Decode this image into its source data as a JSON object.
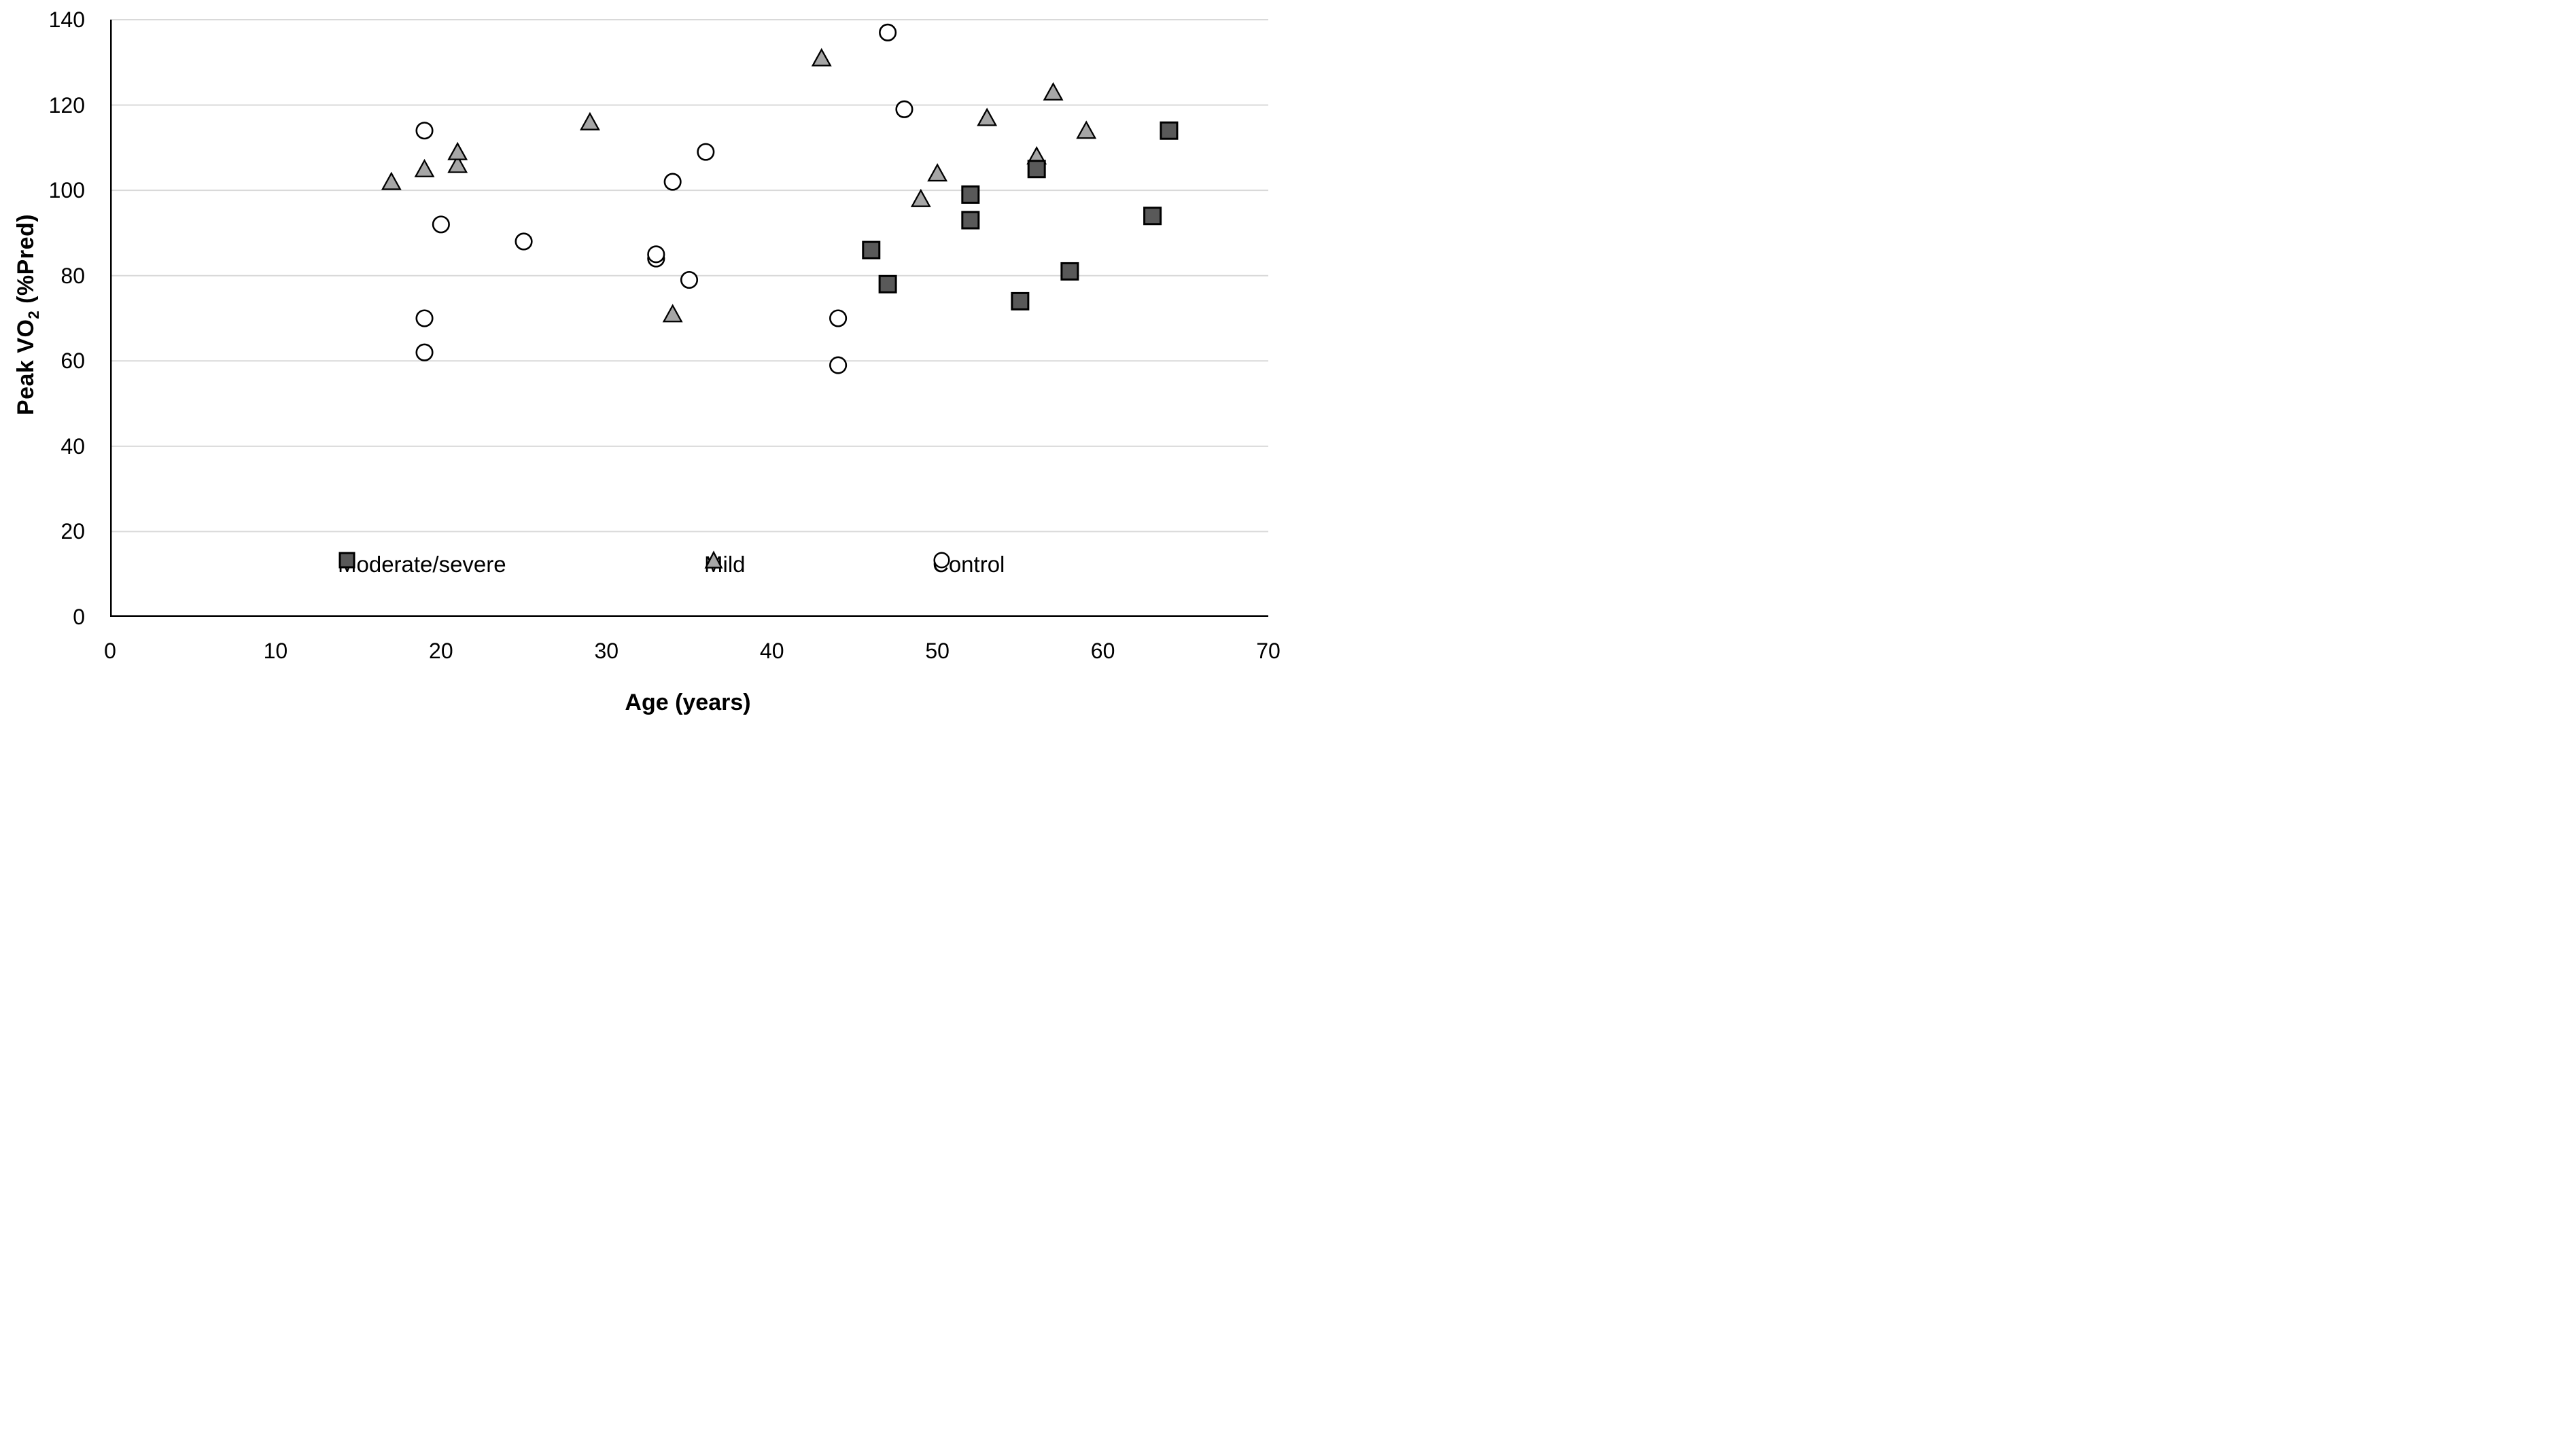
{
  "chart": {
    "xlabel": "Age (years)",
    "ylabel_main": "Peak VO",
    "ylabel_sub": "2",
    "ylabel_rest": " (%Pred)",
    "x_ticks": [
      "0",
      "10",
      "20",
      "30",
      "40",
      "50",
      "60",
      "70"
    ],
    "y_ticks": [
      "0",
      "20",
      "40",
      "60",
      "80",
      "100",
      "120",
      "140"
    ]
  },
  "chart_data": {
    "type": "scatter",
    "title": "",
    "xlabel": "Age (years)",
    "ylabel": "Peak VO2 (%Pred)",
    "xlim": [
      0,
      70
    ],
    "ylim": [
      0,
      140
    ],
    "x_tick_step": 10,
    "y_tick_step": 20,
    "grid": "horizontal-only",
    "gridline_color": "#d9d9d9",
    "axis_color": "#000000",
    "legend_position": "inside-bottom",
    "series": [
      {
        "name": "Moderate/severe",
        "marker": "square",
        "fill": "#595959",
        "stroke": "#000000",
        "points": [
          [
            46,
            86
          ],
          [
            47,
            78
          ],
          [
            52,
            93
          ],
          [
            52,
            99
          ],
          [
            55,
            74
          ],
          [
            56,
            105
          ],
          [
            58,
            81
          ],
          [
            63,
            94
          ],
          [
            64,
            114
          ]
        ]
      },
      {
        "name": "Mild",
        "marker": "triangle",
        "fill": "#a6a6a6",
        "stroke": "#000000",
        "points": [
          [
            17,
            102
          ],
          [
            19,
            105
          ],
          [
            21,
            106
          ],
          [
            21,
            109
          ],
          [
            29,
            116
          ],
          [
            34,
            71
          ],
          [
            43,
            131
          ],
          [
            49,
            98
          ],
          [
            50,
            104
          ],
          [
            53,
            117
          ],
          [
            56,
            108
          ],
          [
            57,
            123
          ],
          [
            59,
            114
          ]
        ]
      },
      {
        "name": "Control",
        "marker": "circle",
        "fill": "#ffffff",
        "stroke": "#000000",
        "points": [
          [
            19,
            62
          ],
          [
            19,
            70
          ],
          [
            19,
            114
          ],
          [
            20,
            92
          ],
          [
            25,
            88
          ],
          [
            33,
            84
          ],
          [
            33,
            85
          ],
          [
            34,
            102
          ],
          [
            35,
            79
          ],
          [
            36,
            109
          ],
          [
            44,
            59
          ],
          [
            44,
            70
          ],
          [
            47,
            137
          ],
          [
            48,
            119
          ]
        ]
      }
    ]
  }
}
